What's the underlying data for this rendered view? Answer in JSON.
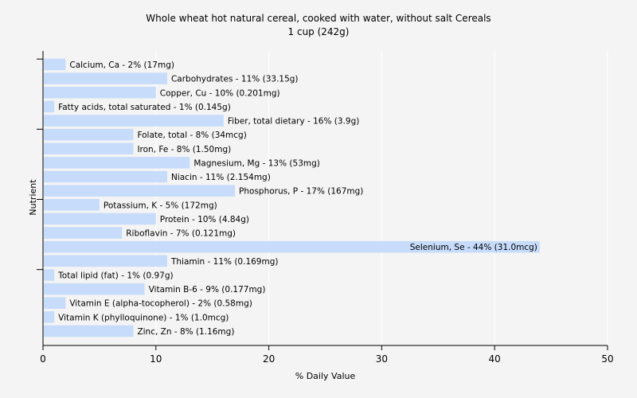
{
  "chart_data": {
    "type": "bar",
    "orientation": "horizontal",
    "title": "Whole wheat hot natural cereal, cooked with water, without salt Cereals",
    "subtitle": "1 cup (242g)",
    "xlabel": "% Daily Value",
    "ylabel": "Nutrient",
    "xlim": [
      0,
      50
    ],
    "xticks": [
      0,
      10,
      20,
      30,
      40,
      50
    ],
    "grid": true,
    "legend": "none",
    "bar_color": "#c6dcfa",
    "categories": [
      "Calcium, Ca",
      "Carbohydrates",
      "Copper, Cu",
      "Fatty acids, total saturated",
      "Fiber, total dietary",
      "Folate, total",
      "Iron, Fe",
      "Magnesium, Mg",
      "Niacin",
      "Phosphorus, P",
      "Potassium, K",
      "Protein",
      "Riboflavin",
      "Selenium, Se",
      "Thiamin",
      "Total lipid (fat)",
      "Vitamin B-6",
      "Vitamin E (alpha-tocopherol)",
      "Vitamin K (phylloquinone)",
      "Zinc, Zn"
    ],
    "values": [
      2,
      11,
      10,
      1,
      16,
      8,
      8,
      13,
      11,
      17,
      5,
      10,
      7,
      44,
      11,
      1,
      9,
      2,
      1,
      8
    ],
    "labels": [
      "Calcium, Ca - 2% (17mg)",
      "Carbohydrates - 11% (33.15g)",
      "Copper, Cu - 10% (0.201mg)",
      "Fatty acids, total saturated - 1% (0.145g)",
      "Fiber, total dietary - 16% (3.9g)",
      "Folate, total - 8% (34mcg)",
      "Iron, Fe - 8% (1.50mg)",
      "Magnesium, Mg - 13% (53mg)",
      "Niacin - 11% (2.154mg)",
      "Phosphorus, P - 17% (167mg)",
      "Potassium, K - 5% (172mg)",
      "Protein - 10% (4.84g)",
      "Riboflavin - 7% (0.121mg)",
      "Selenium, Se - 44% (31.0mcg)",
      "Thiamin - 11% (0.169mg)",
      "Total lipid (fat) - 1% (0.97g)",
      "Vitamin B-6 - 9% (0.177mg)",
      "Vitamin E (alpha-tocopherol) - 2% (0.58mg)",
      "Vitamin K (phylloquinone) - 1% (1.0mcg)",
      "Zinc, Zn - 8% (1.16mg)"
    ]
  }
}
